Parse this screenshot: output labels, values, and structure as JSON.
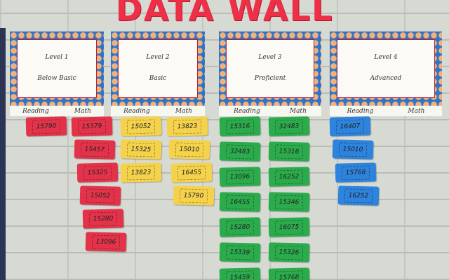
{
  "title": "DATA WALL",
  "levels": [
    {
      "name": "Level 1",
      "label": "Below Basic",
      "columns": [
        "Reading",
        "Math"
      ],
      "reading": [
        "15790"
      ],
      "math": [
        "15379",
        "15457",
        "15325",
        "15052",
        "15280",
        "13096"
      ]
    },
    {
      "name": "Level 2",
      "label": "Basic",
      "columns": [
        "Reading",
        "Math"
      ],
      "reading": [
        "15052",
        "15325",
        "13823"
      ],
      "math": [
        "13823",
        "15010",
        "16455",
        "15790"
      ]
    },
    {
      "name": "Level 3",
      "label": "Proficient",
      "columns": [
        "Reading",
        "Math"
      ],
      "reading": [
        "15316",
        "32483",
        "13096",
        "16455",
        "15280",
        "15339",
        "15459"
      ],
      "math": [
        "32483",
        "15316",
        "16252",
        "15346",
        "16075",
        "15326",
        "15768"
      ]
    },
    {
      "name": "Level 4",
      "label": "Advanced",
      "columns": [
        "Reading",
        "Math"
      ],
      "reading": [
        "16407",
        "15010",
        "15768",
        "16252"
      ],
      "math": []
    }
  ]
}
